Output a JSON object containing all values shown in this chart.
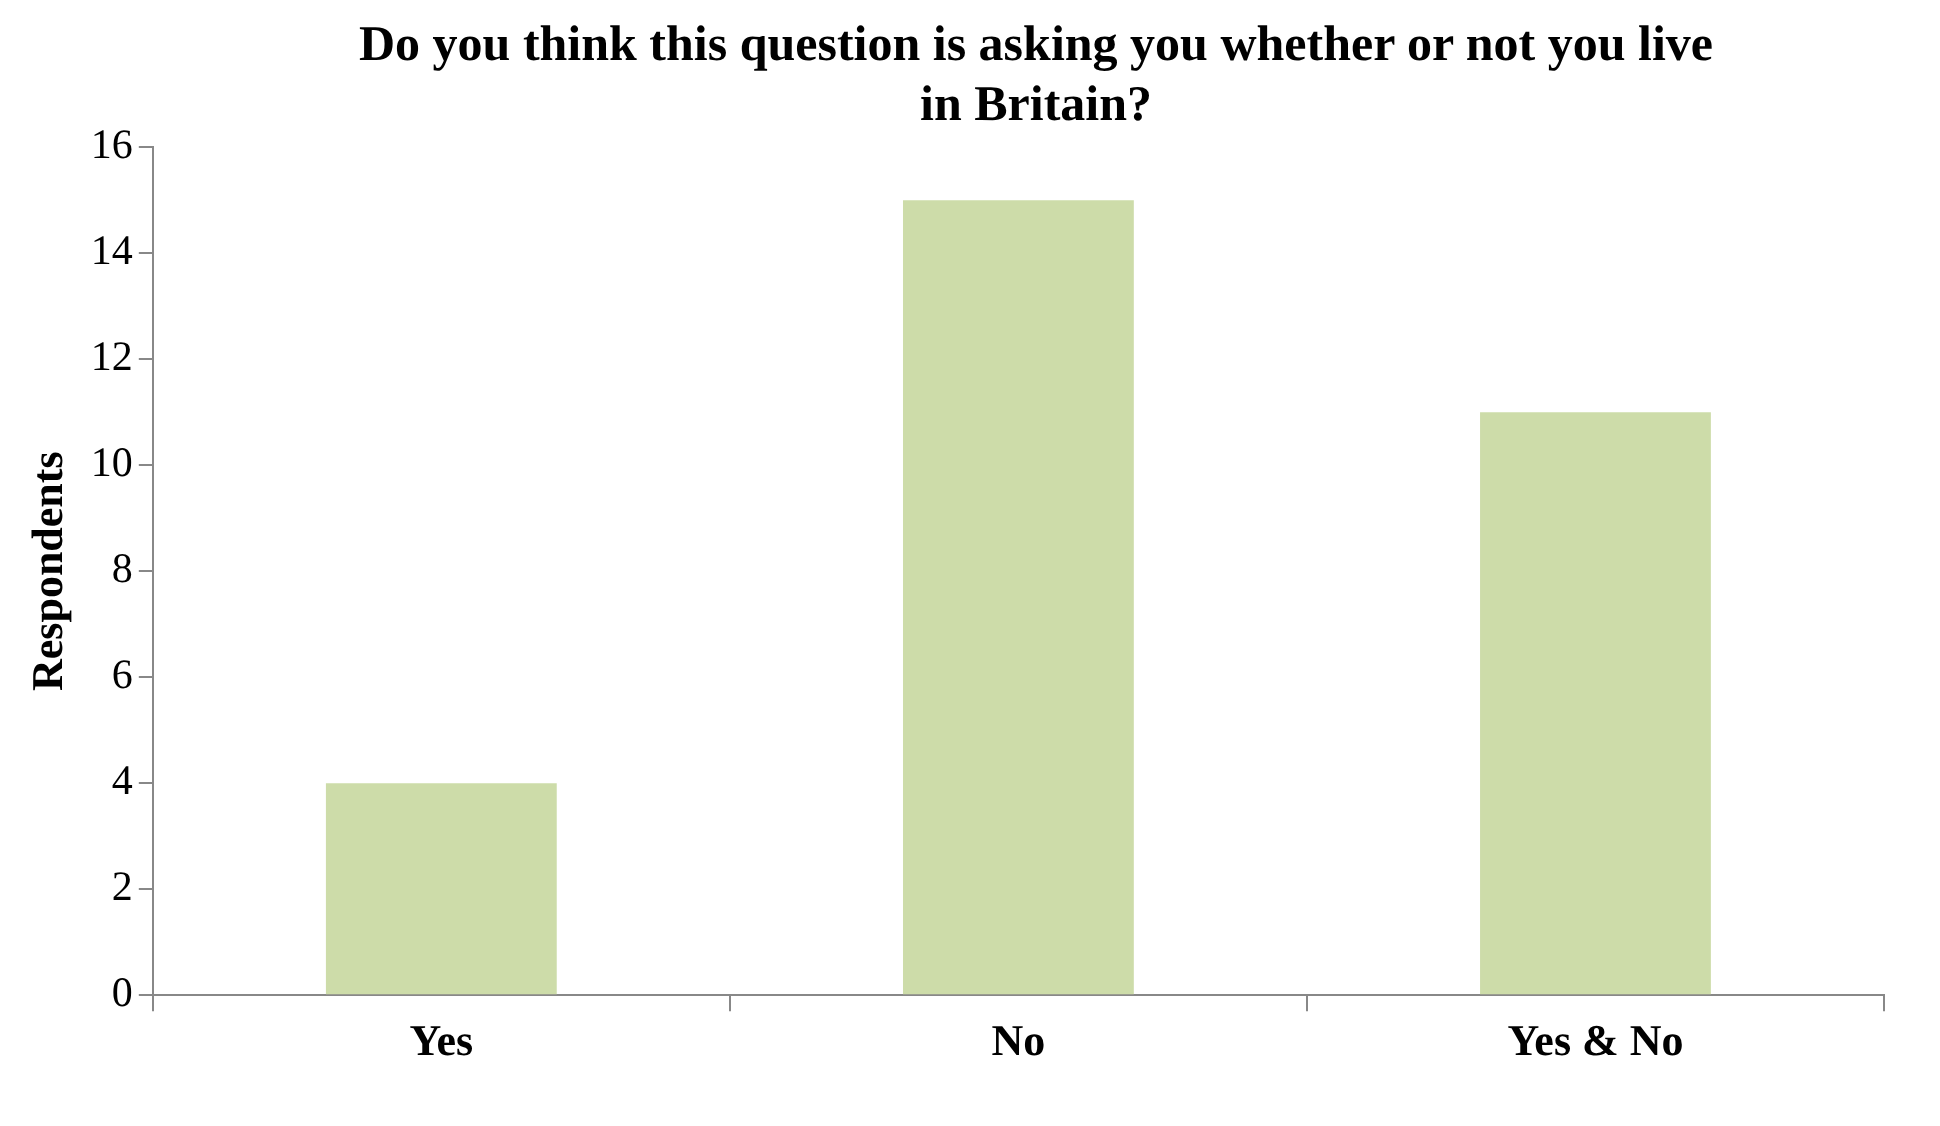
{
  "chart_data": {
    "type": "bar",
    "title": "Do you think this question is asking you whether or not you live in Britain?",
    "ylabel": "Respondents",
    "categories": [
      "Yes",
      "No",
      "Yes & No"
    ],
    "values": [
      4,
      15,
      11
    ],
    "color": "#cddca9",
    "ylim": [
      0,
      16
    ],
    "yticks": [
      0,
      2,
      4,
      6,
      8,
      10,
      12,
      14,
      16
    ]
  }
}
